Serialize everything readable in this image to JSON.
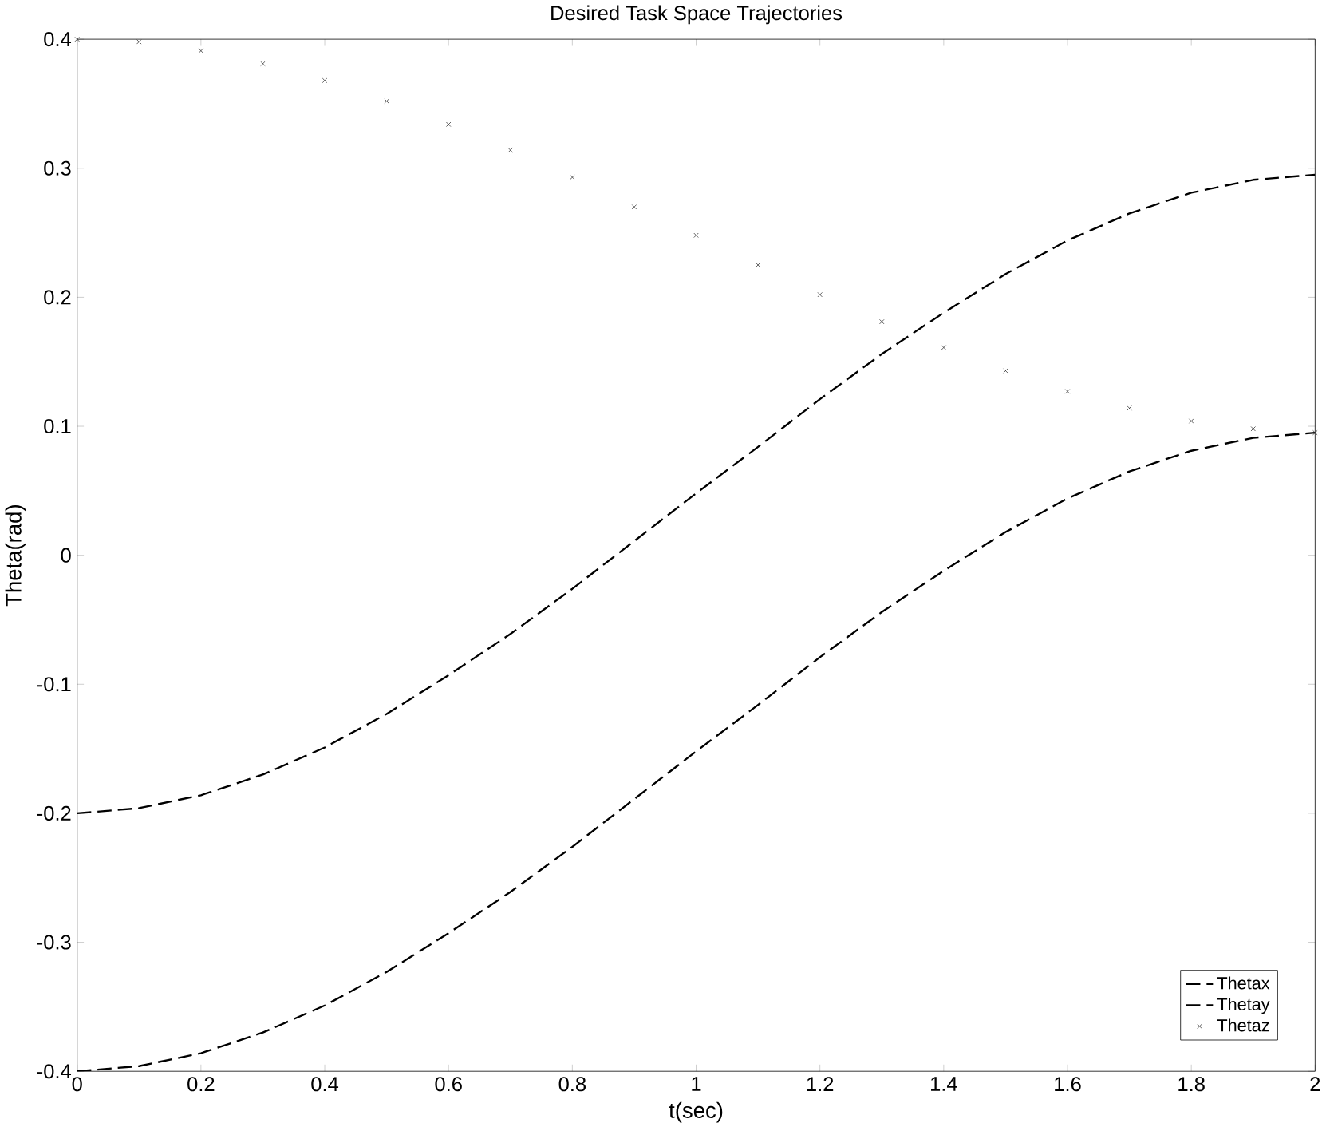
{
  "chart_data": {
    "type": "line",
    "title": "Desired Task Space Trajectories",
    "xlabel": "t(sec)",
    "ylabel": "Theta(rad)",
    "x": [
      0,
      0.1,
      0.2,
      0.3,
      0.4,
      0.5,
      0.6,
      0.7,
      0.8,
      0.9,
      1.0,
      1.1,
      1.2,
      1.3,
      1.4,
      1.5,
      1.6,
      1.7,
      1.8,
      1.9,
      2.0
    ],
    "series": [
      {
        "name": "Thetax",
        "color": "#000000",
        "line_style": "dashed",
        "values": [
          -0.2,
          -0.196,
          -0.186,
          -0.17,
          -0.149,
          -0.123,
          -0.093,
          -0.061,
          -0.026,
          0.011,
          0.048,
          0.084,
          0.121,
          0.156,
          0.188,
          0.218,
          0.244,
          0.265,
          0.281,
          0.291,
          0.295
        ]
      },
      {
        "name": "Thetay",
        "color": "#000000",
        "line_style": "dashed",
        "values": [
          -0.4,
          -0.396,
          -0.386,
          -0.37,
          -0.349,
          -0.323,
          -0.293,
          -0.261,
          -0.226,
          -0.189,
          -0.152,
          -0.116,
          -0.079,
          -0.044,
          -0.012,
          0.018,
          0.044,
          0.065,
          0.081,
          0.091,
          0.095
        ]
      },
      {
        "name": "Thetaz",
        "type": "scatter",
        "marker": "cross",
        "color": "#333333",
        "values": [
          0.4,
          0.398,
          0.391,
          0.381,
          0.368,
          0.352,
          0.334,
          0.314,
          0.293,
          0.27,
          0.248,
          0.225,
          0.202,
          0.181,
          0.161,
          0.143,
          0.127,
          0.114,
          0.104,
          0.098,
          0.095
        ]
      }
    ],
    "xlim": [
      0,
      2
    ],
    "ylim": [
      -0.4,
      0.4
    ],
    "xticks": [
      0,
      0.2,
      0.4,
      0.6,
      0.8,
      1,
      1.2,
      1.4,
      1.6,
      1.8,
      2
    ],
    "yticks": [
      -0.4,
      -0.3,
      -0.2,
      -0.1,
      0,
      0.1,
      0.2,
      0.3,
      0.4
    ],
    "grid": false,
    "legend": "bottom right"
  }
}
